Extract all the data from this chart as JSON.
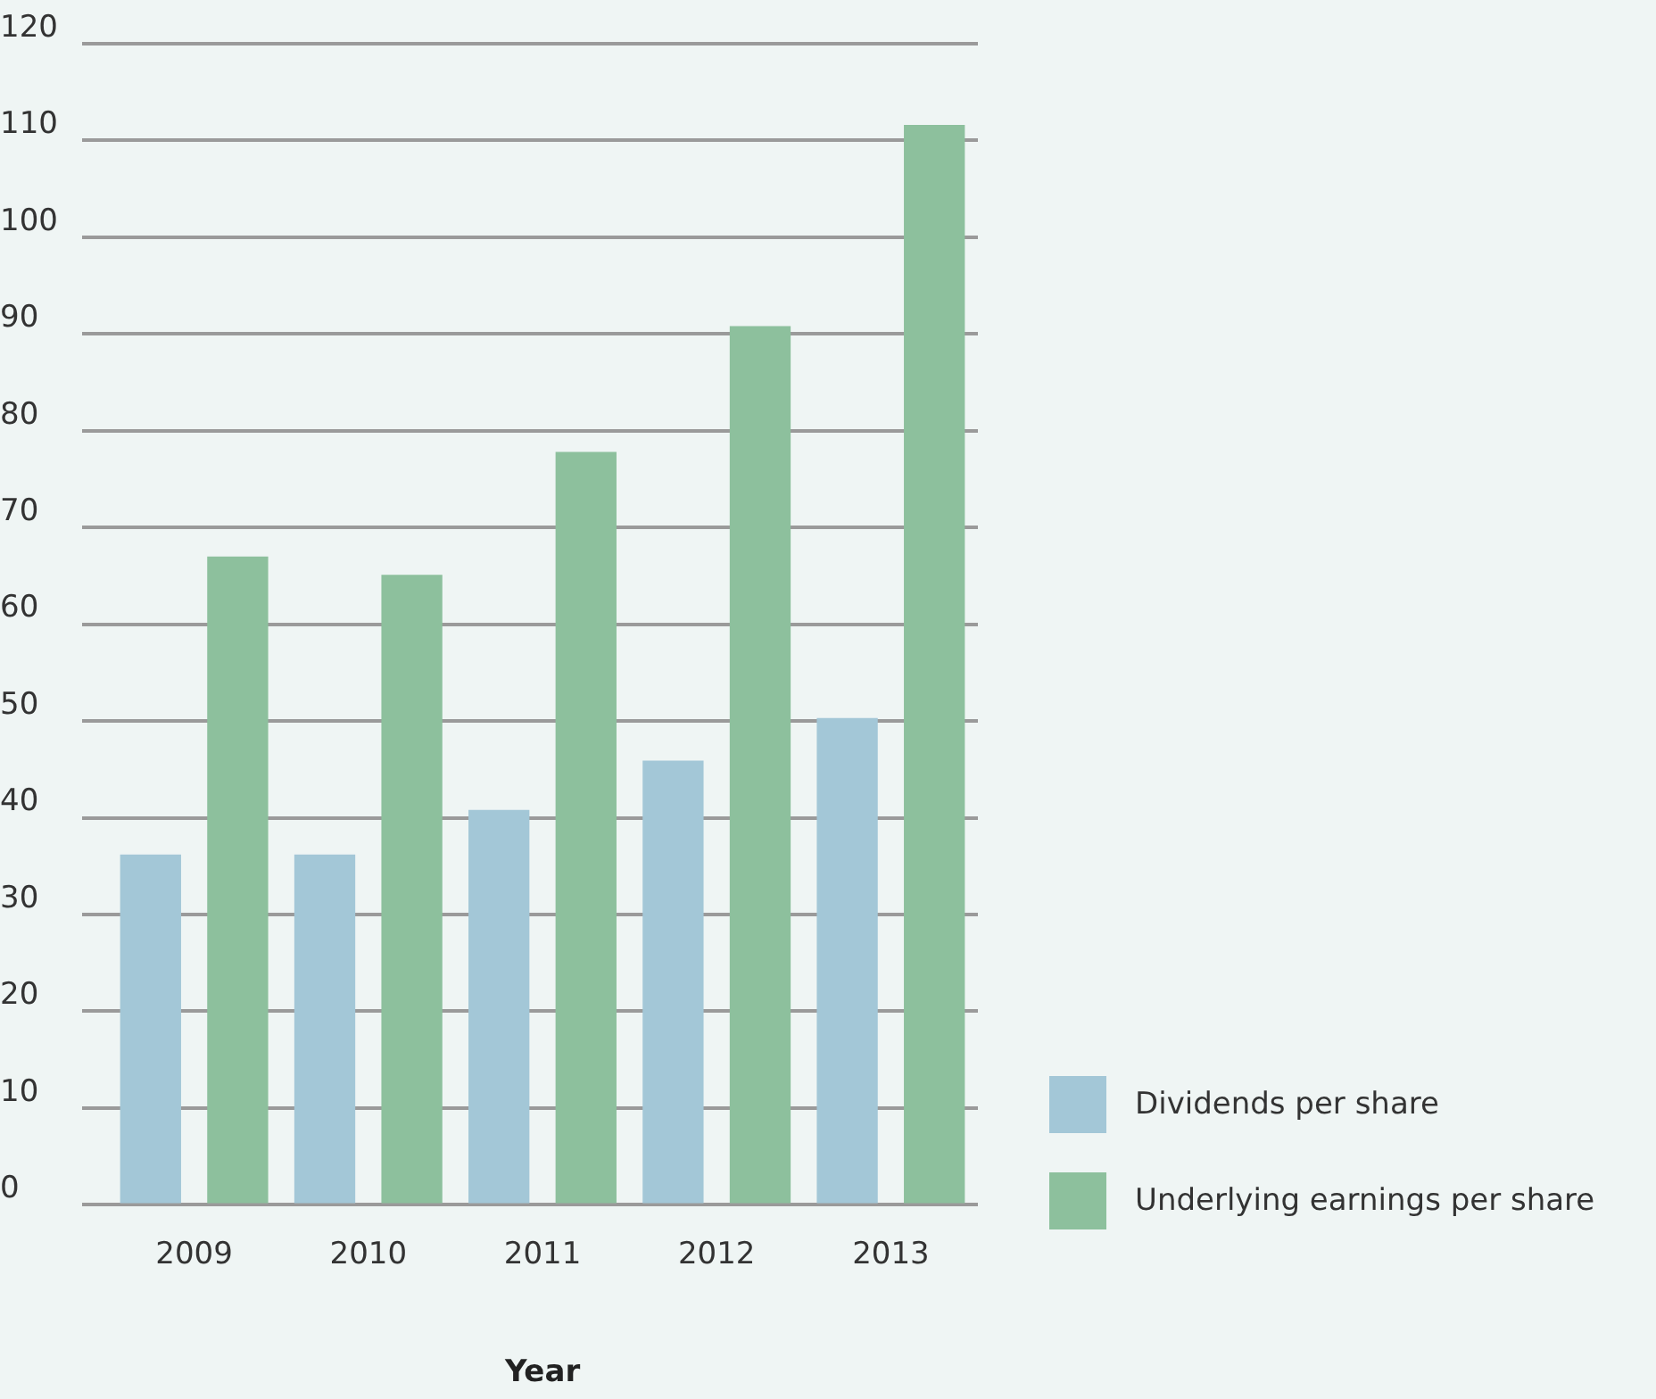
{
  "chart_data": {
    "type": "bar",
    "xlabel": "Year",
    "categories": [
      "2009",
      "2010",
      "2011",
      "2012",
      "2013"
    ],
    "series": [
      {
        "name": "Dividends per share",
        "color": "#a3c7d7",
        "values": [
          36.2,
          36.2,
          40.8,
          45.9,
          50.3
        ]
      },
      {
        "name": "Underlying earnings per share",
        "color": "#8dc09d",
        "values": [
          67.0,
          65.1,
          77.8,
          90.8,
          111.6
        ]
      }
    ],
    "ylim": [
      0,
      120
    ],
    "yticks": [
      0,
      10,
      20,
      30,
      40,
      50,
      60,
      70,
      80,
      90,
      100,
      110,
      120
    ],
    "grid": "y",
    "legend": "bottom right"
  }
}
